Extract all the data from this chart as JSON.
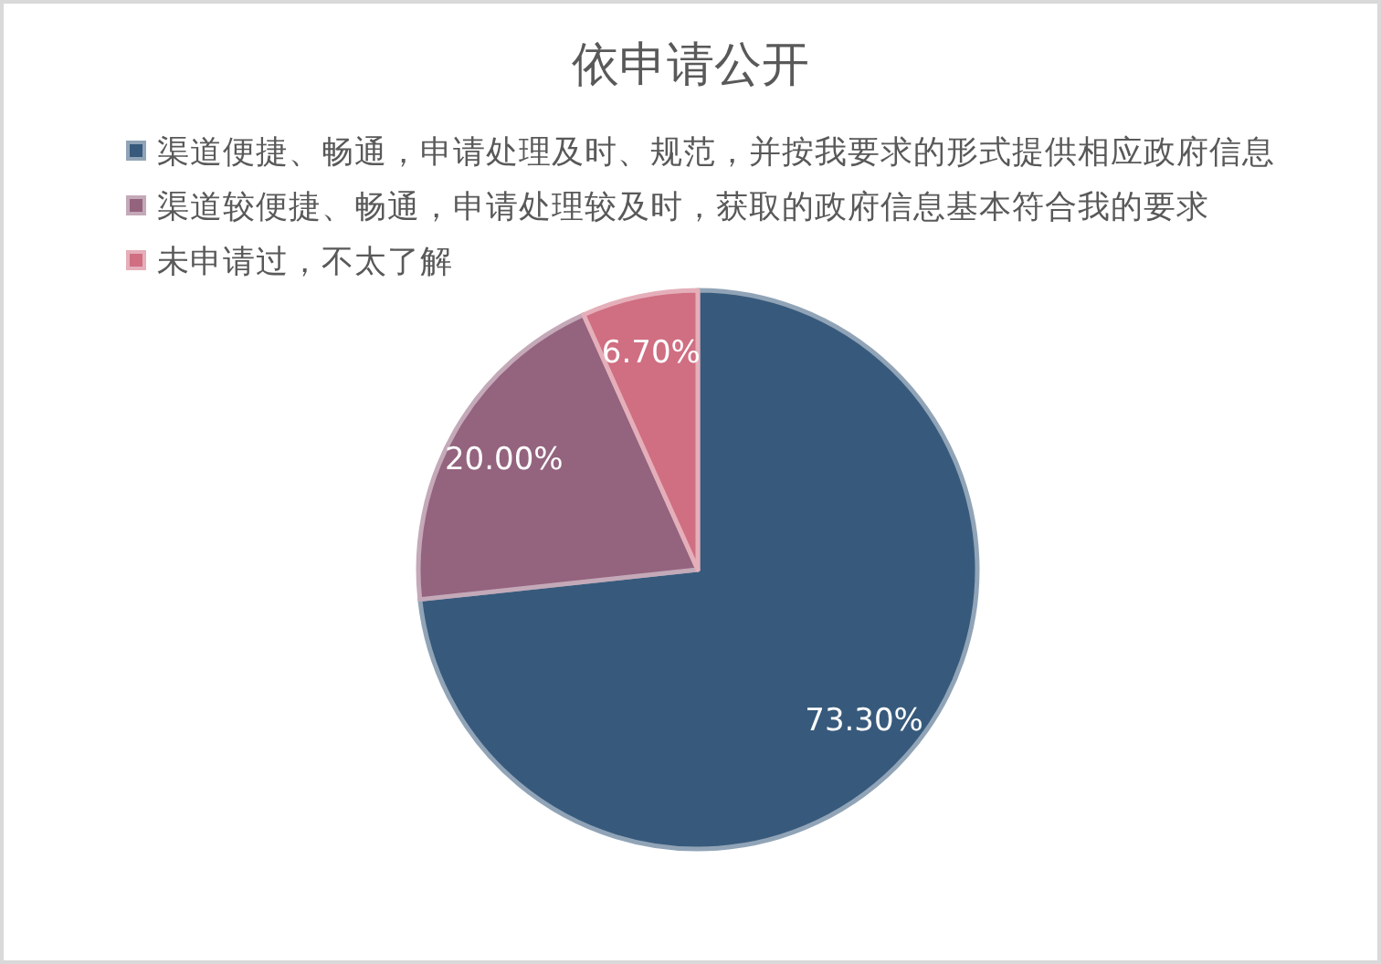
{
  "chart_data": {
    "type": "pie",
    "title": "依申请公开",
    "categories": [
      "渠道便捷、畅通，申请处理及时、规范，并按我要求的形式提供相应政府信息",
      "渠道较便捷、畅通，申请处理较及时，获取的政府信息基本符合我的要求",
      "未申请过，不太了解"
    ],
    "values": [
      73.3,
      20.0,
      6.7
    ],
    "colors": [
      "#375a7c",
      "#94637e",
      "#d06e82"
    ],
    "value_labels": [
      "73.30%",
      "20.00%",
      "6.70%"
    ],
    "legend": "top"
  }
}
